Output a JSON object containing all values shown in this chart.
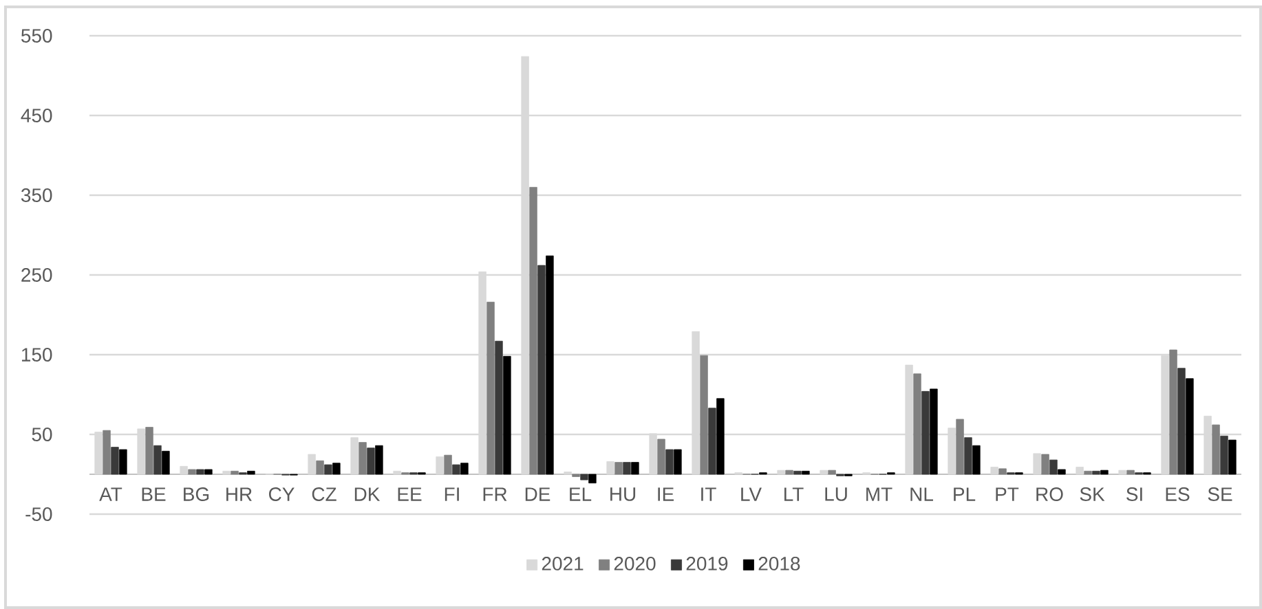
{
  "chart_data": {
    "type": "bar",
    "categories": [
      "AT",
      "BE",
      "BG",
      "HR",
      "CY",
      "CZ",
      "DK",
      "EE",
      "FI",
      "FR",
      "DE",
      "EL",
      "HU",
      "IE",
      "IT",
      "LV",
      "LT",
      "LU",
      "MT",
      "NL",
      "PL",
      "PT",
      "RO",
      "SK",
      "SI",
      "ES",
      "SE"
    ],
    "series": [
      {
        "name": "2021",
        "color": "#d9d9d9",
        "values": [
          53,
          57,
          10,
          4,
          0,
          25,
          46,
          4,
          22,
          254,
          524,
          3,
          16,
          51,
          179,
          2,
          5,
          5,
          2,
          137,
          58,
          9,
          26,
          9,
          5,
          149,
          73
        ]
      },
      {
        "name": "2020",
        "color": "#808080",
        "values": [
          55,
          59,
          6,
          4,
          0,
          17,
          40,
          2,
          24,
          216,
          360,
          -3,
          15,
          44,
          149,
          0,
          5,
          5,
          0,
          126,
          69,
          7,
          25,
          4,
          5,
          156,
          62
        ]
      },
      {
        "name": "2019",
        "color": "#3a3a3a",
        "values": [
          34,
          36,
          6,
          2,
          -1,
          12,
          33,
          2,
          12,
          167,
          262,
          -7,
          15,
          31,
          83,
          0,
          4,
          -2,
          0,
          104,
          46,
          2,
          18,
          4,
          2,
          133,
          48
        ]
      },
      {
        "name": "2018",
        "color": "#000000",
        "values": [
          31,
          29,
          6,
          4,
          -1,
          14,
          36,
          2,
          14,
          148,
          274,
          -11,
          15,
          31,
          95,
          2,
          4,
          -2,
          2,
          107,
          36,
          2,
          6,
          5,
          2,
          120,
          43
        ]
      }
    ],
    "ylim": [
      -50,
      550
    ],
    "yticks": [
      -50,
      50,
      150,
      250,
      350,
      450,
      550
    ],
    "grid": "y",
    "legend": "bottom"
  }
}
